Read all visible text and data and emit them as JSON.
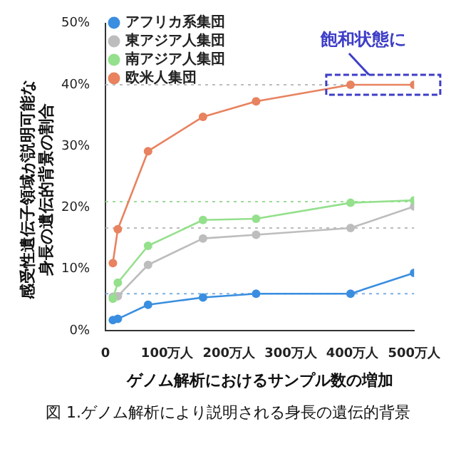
{
  "chart_data": {
    "type": "line",
    "xlabel": "ゲノム解析におけるサンプル数の増加",
    "ylabel": "感受性遺伝子領域が説明可能な身長の遺伝的背景の割合",
    "x": [
      12,
      20,
      69,
      158,
      244,
      397,
      500
    ],
    "series": [
      {
        "name": "アフリカ系集団",
        "color": "#3a8ee0",
        "values": [
          1.7,
          1.9,
          4.2,
          5.4,
          6.0,
          6.0,
          9.4
        ]
      },
      {
        "name": "東アジア人集団",
        "color": "#bdbdbd",
        "values": [
          5.5,
          5.6,
          10.7,
          15.0,
          15.6,
          16.7,
          20.2
        ]
      },
      {
        "name": "南アジア人集団",
        "color": "#94e08c",
        "values": [
          5.2,
          7.8,
          13.8,
          18.0,
          18.2,
          20.8,
          21.2
        ]
      },
      {
        "name": "欧米人集団",
        "color": "#e8825f",
        "values": [
          11.0,
          16.5,
          29.2,
          34.8,
          37.3,
          40.0,
          40.0
        ]
      }
    ],
    "xlim": [
      0,
      500
    ],
    "xticks": [
      0,
      {
        "value": 100,
        "label": "100万人"
      },
      {
        "value": 200,
        "label": "200万人"
      },
      {
        "value": 300,
        "label": "300万人"
      },
      {
        "value": 400,
        "label": "400万人"
      },
      {
        "value": 500,
        "label": "500万人"
      }
    ],
    "ylim": [
      0,
      50
    ],
    "yticks": [
      {
        "value": 0,
        "label": "0%"
      },
      {
        "value": 10,
        "label": "10%"
      },
      {
        "value": 20,
        "label": "20%"
      },
      {
        "value": 30,
        "label": "30%"
      },
      {
        "value": 40,
        "label": "40%"
      },
      {
        "value": 50,
        "label": "50%"
      }
    ],
    "ref_lines": [
      {
        "axis": "y",
        "value": 40,
        "color": "#bbbbbb",
        "line_style": "dotted"
      },
      {
        "axis": "y",
        "value": 21,
        "color": "#9fd89a",
        "line_style": "dotted"
      },
      {
        "axis": "y",
        "value": 16.7,
        "color": "#bbbbbb",
        "line_style": "dotted"
      },
      {
        "axis": "y",
        "value": 6,
        "color": "#7fb0e0",
        "line_style": "dotted"
      }
    ],
    "annotations": [
      {
        "text": "飽和状態に",
        "x": 450,
        "y": 40
      },
      "図 1.ゲノム解析により説明される身長の遺伝的背景"
    ],
    "legend": "top left",
    "marker": "circle",
    "line_style": "solid",
    "grid": false
  }
}
